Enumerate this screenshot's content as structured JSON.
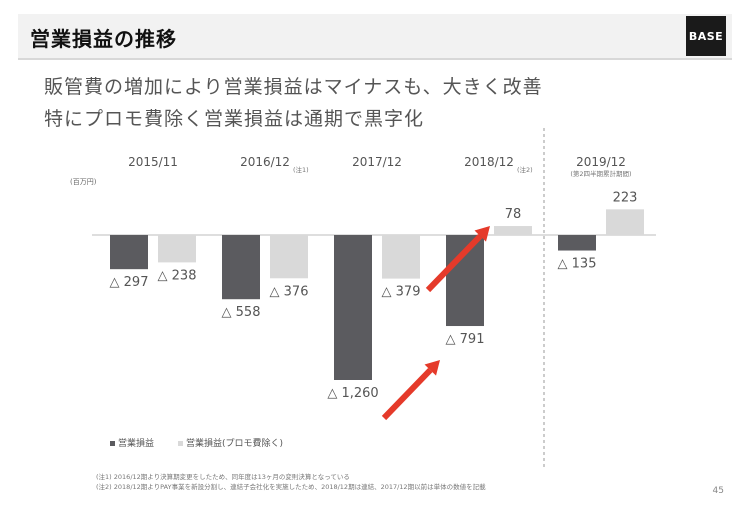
{
  "header": {
    "title": "営業損益の推移",
    "logo_text": "BASE"
  },
  "subtitle": {
    "line1": "販管費の増加により営業損益はマイナスも、大きく改善",
    "line2": "特にプロモ費除く営業損益は通期で黒字化"
  },
  "chart_data": {
    "type": "bar",
    "unit_label": "(百万円)",
    "categories": [
      "2015/11",
      "2016/12",
      "2017/12",
      "2018/12",
      "2019/12"
    ],
    "category_notes": [
      "",
      "(注1)",
      "",
      "(注2)",
      "(第2四半期累計期間)"
    ],
    "series": [
      {
        "name": "営業損益",
        "values": [
          -297,
          -558,
          -1260,
          -791,
          -135
        ],
        "labels": [
          "△ 297",
          "△ 558",
          "△ 1,260",
          "△ 791",
          "△ 135"
        ]
      },
      {
        "name": "営業損益(プロモ費除く)",
        "values": [
          -238,
          -376,
          -379,
          78,
          223
        ],
        "labels": [
          "△ 238",
          "△ 376",
          "△ 379",
          "78",
          "223"
        ]
      }
    ],
    "ylim": [
      -1260,
      223
    ],
    "legend_position": "bottom-left",
    "colors": {
      "series1": "#5b5b5f",
      "series2": "#d9d9d9",
      "arrow": "#e53a2a"
    }
  },
  "footnotes": [
    "(注1) 2016/12期より決算期変更をしたため、同年度は13ヶ月の変則決算となっている",
    "(注2) 2018/12期よりPAY事業を新設分割し、連結子会社化を実施したため、2018/12期は連結、2017/12期以前は単体の数値を記載"
  ],
  "page_number": "45"
}
